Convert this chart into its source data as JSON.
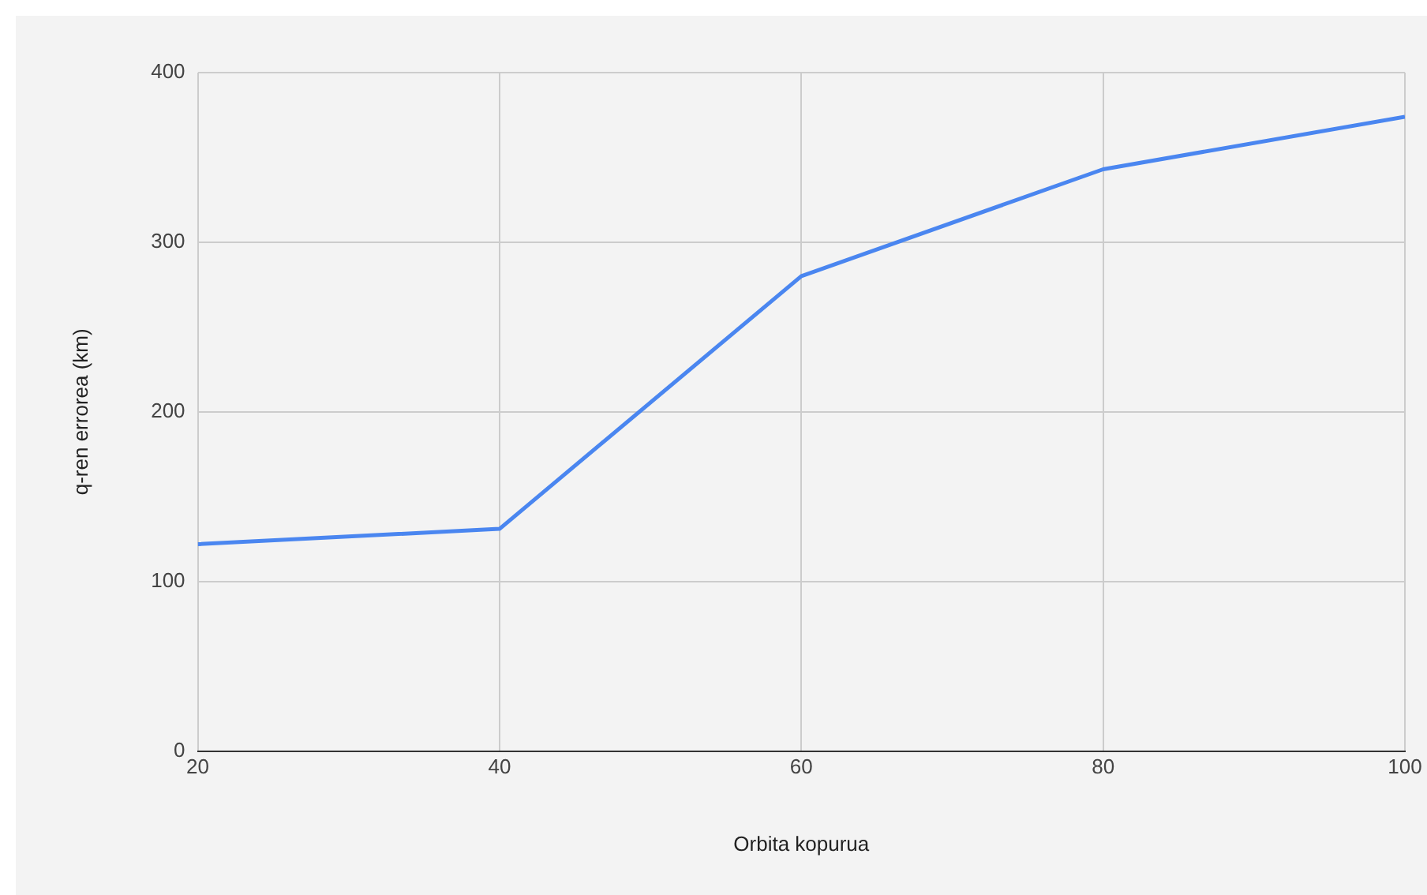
{
  "chart_data": {
    "type": "line",
    "xlabel": "Orbita kopurua",
    "ylabel": "q-ren errorea (km)",
    "x": [
      20,
      40,
      60,
      80,
      100
    ],
    "series": [
      {
        "color": "#4a86f0",
        "values": [
          122,
          131,
          280,
          343,
          374
        ]
      }
    ],
    "xlim": [
      20,
      100
    ],
    "xticks": [
      20,
      40,
      60,
      80,
      100
    ],
    "ylim": [
      0,
      400
    ],
    "yticks": [
      0,
      100,
      200,
      300,
      400
    ],
    "grid": true,
    "legend": false,
    "marker": "none",
    "line_style": "solid"
  }
}
